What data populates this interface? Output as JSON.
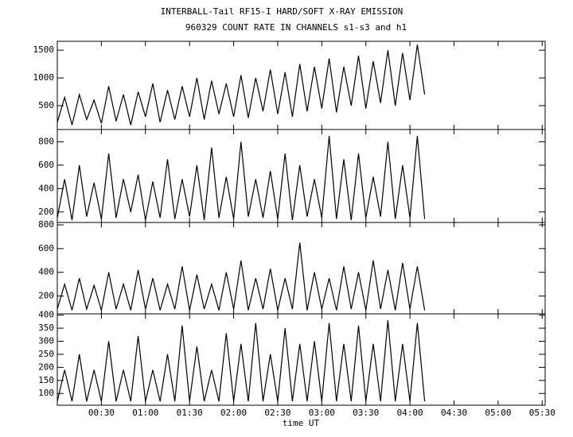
{
  "chart_data": [
    {
      "type": "line",
      "title": "INTERBALL-Tail RF15-I HARD/SOFT X-RAY EMISSION",
      "subtitle": "960329  COUNT RATE IN CHANNELS s1-s3 and h1",
      "color": "#000000",
      "x": [
        0,
        5,
        10,
        15,
        20,
        25,
        30,
        35,
        40,
        45,
        50,
        55,
        60,
        65,
        70,
        75,
        80,
        85,
        90,
        95,
        100,
        105,
        110,
        115,
        120,
        125,
        130,
        135,
        140,
        145,
        150,
        155,
        160,
        165,
        170,
        175,
        180,
        185,
        190,
        195,
        200,
        205,
        210,
        215,
        220,
        225,
        230,
        235,
        240,
        245,
        250
      ],
      "values": [
        200,
        650,
        150,
        700,
        250,
        600,
        180,
        850,
        220,
        700,
        150,
        750,
        300,
        900,
        200,
        780,
        250,
        850,
        300,
        1000,
        250,
        950,
        350,
        900,
        300,
        1050,
        280,
        1000,
        400,
        1150,
        350,
        1100,
        300,
        1250,
        400,
        1200,
        450,
        1350,
        380,
        1200,
        500,
        1400,
        450,
        1300,
        550,
        1500,
        500,
        1450,
        600,
        1600,
        700
      ],
      "xlim": [
        0,
        332
      ],
      "ylim": [
        70,
        1660
      ],
      "yticks": [
        500,
        1000,
        1500
      ]
    },
    {
      "type": "line",
      "color": "#000000",
      "x": [
        0,
        5,
        10,
        15,
        20,
        25,
        30,
        35,
        40,
        45,
        50,
        55,
        60,
        65,
        70,
        75,
        80,
        85,
        90,
        95,
        100,
        105,
        110,
        115,
        120,
        125,
        130,
        135,
        140,
        145,
        150,
        155,
        160,
        165,
        170,
        175,
        180,
        185,
        190,
        195,
        200,
        205,
        210,
        215,
        220,
        225,
        230,
        235,
        240,
        245,
        250
      ],
      "values": [
        150,
        480,
        130,
        600,
        160,
        450,
        140,
        700,
        150,
        480,
        200,
        520,
        130,
        460,
        150,
        650,
        140,
        480,
        160,
        600,
        130,
        750,
        150,
        500,
        140,
        800,
        160,
        480,
        150,
        550,
        140,
        700,
        130,
        600,
        160,
        480,
        150,
        850,
        140,
        650,
        130,
        700,
        150,
        500,
        160,
        800,
        140,
        600,
        150,
        850,
        140
      ],
      "xlim": [
        0,
        332
      ],
      "ylim": [
        110,
        905
      ],
      "yticks": [
        200,
        400,
        600,
        800
      ]
    },
    {
      "type": "line",
      "color": "#000000",
      "x": [
        0,
        5,
        10,
        15,
        20,
        25,
        30,
        35,
        40,
        45,
        50,
        55,
        60,
        65,
        70,
        75,
        80,
        85,
        90,
        95,
        100,
        105,
        110,
        115,
        120,
        125,
        130,
        135,
        140,
        145,
        150,
        155,
        160,
        165,
        170,
        175,
        180,
        185,
        190,
        195,
        200,
        205,
        210,
        215,
        220,
        225,
        230,
        235,
        240,
        245,
        250
      ],
      "values": [
        90,
        300,
        80,
        350,
        90,
        290,
        80,
        400,
        90,
        300,
        80,
        420,
        90,
        350,
        80,
        300,
        90,
        450,
        80,
        380,
        90,
        300,
        80,
        400,
        90,
        500,
        80,
        350,
        90,
        430,
        80,
        350,
        90,
        650,
        80,
        400,
        90,
        350,
        80,
        450,
        90,
        400,
        80,
        500,
        90,
        420,
        80,
        480,
        90,
        450,
        80
      ],
      "xlim": [
        0,
        332
      ],
      "ylim": [
        50,
        820
      ],
      "yticks": [
        200,
        400,
        600,
        800
      ]
    },
    {
      "type": "line",
      "color": "#000000",
      "xlabel": "time UT",
      "x": [
        0,
        5,
        10,
        15,
        20,
        25,
        30,
        35,
        40,
        45,
        50,
        55,
        60,
        65,
        70,
        75,
        80,
        85,
        90,
        95,
        100,
        105,
        110,
        115,
        120,
        125,
        130,
        135,
        140,
        145,
        150,
        155,
        160,
        165,
        170,
        175,
        180,
        185,
        190,
        195,
        200,
        205,
        210,
        215,
        220,
        225,
        230,
        235,
        240,
        245,
        250
      ],
      "values": [
        70,
        190,
        70,
        250,
        70,
        190,
        70,
        300,
        70,
        190,
        70,
        320,
        70,
        190,
        70,
        250,
        70,
        360,
        70,
        280,
        70,
        190,
        70,
        330,
        70,
        290,
        70,
        370,
        70,
        250,
        70,
        350,
        70,
        290,
        70,
        300,
        70,
        370,
        70,
        290,
        70,
        360,
        70,
        290,
        70,
        380,
        70,
        290,
        70,
        370,
        70
      ],
      "xlim": [
        0,
        332
      ],
      "ylim": [
        55,
        405
      ],
      "yticks": [
        100,
        150,
        200,
        250,
        300,
        350,
        400
      ],
      "xticks": [
        {
          "value": 30,
          "label": "00:30"
        },
        {
          "value": 60,
          "label": "01:00"
        },
        {
          "value": 90,
          "label": "01:30"
        },
        {
          "value": 120,
          "label": "02:00"
        },
        {
          "value": 150,
          "label": "02:30"
        },
        {
          "value": 180,
          "label": "03:00"
        },
        {
          "value": 210,
          "label": "03:30"
        },
        {
          "value": 240,
          "label": "04:00"
        },
        {
          "value": 270,
          "label": "04:30"
        },
        {
          "value": 300,
          "label": "05:00"
        },
        {
          "value": 330,
          "label": "05:30"
        }
      ]
    }
  ]
}
